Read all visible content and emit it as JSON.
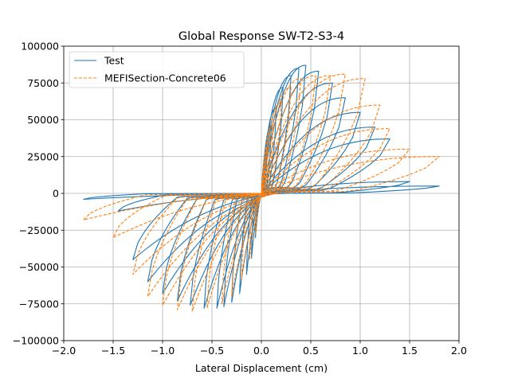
{
  "chart_data": {
    "type": "line",
    "title": "Global Response SW-T2-S3-4",
    "xlabel": "Lateral Displacement (cm)",
    "ylabel": "",
    "xlim": [
      -2.0,
      2.0
    ],
    "ylim": [
      -100000,
      100000
    ],
    "x_ticks": [
      -2.0,
      -1.5,
      -1.0,
      -0.5,
      0.0,
      0.5,
      1.0,
      1.5,
      2.0
    ],
    "x_tick_labels": [
      "−2.0",
      "−1.5",
      "−1.0",
      "−0.5",
      "0.0",
      "0.5",
      "1.0",
      "1.5",
      "2.0"
    ],
    "y_ticks": [
      -100000,
      -75000,
      -50000,
      -25000,
      0,
      25000,
      50000,
      75000,
      100000
    ],
    "y_tick_labels": [
      "−100000",
      "−75000",
      "−50000",
      "−25000",
      "0",
      "25000",
      "50000",
      "75000",
      "100000"
    ],
    "grid": true,
    "legend_position": "top-left",
    "legend": [
      "Test",
      "MEFISection-Concrete06"
    ],
    "series": [
      {
        "name": "Test",
        "color": "#1f77b4",
        "dash": "solid",
        "cycles": [
          {
            "dp": 0.06,
            "fp": 32000,
            "dn": -0.06,
            "fn": -30000
          },
          {
            "dp": 0.1,
            "fp": 46000,
            "dn": -0.1,
            "fn": -44000
          },
          {
            "dp": 0.15,
            "fp": 58000,
            "dn": -0.15,
            "fn": -55000
          },
          {
            "dp": 0.22,
            "fp": 72000,
            "dn": -0.22,
            "fn": -68000
          },
          {
            "dp": 0.3,
            "fp": 80000,
            "dn": -0.3,
            "fn": -74000
          },
          {
            "dp": 0.38,
            "fp": 85000,
            "dn": -0.38,
            "fn": -77000
          },
          {
            "dp": 0.45,
            "fp": 87000,
            "dn": -0.45,
            "fn": -78000
          },
          {
            "dp": 0.58,
            "fp": 83000,
            "dn": -0.58,
            "fn": -78000
          },
          {
            "dp": 0.72,
            "fp": 75000,
            "dn": -0.72,
            "fn": -76000
          },
          {
            "dp": 0.85,
            "fp": 65000,
            "dn": -0.85,
            "fn": -73000
          },
          {
            "dp": 1.0,
            "fp": 55000,
            "dn": -1.0,
            "fn": -68000
          },
          {
            "dp": 1.15,
            "fp": 45000,
            "dn": -1.15,
            "fn": -60000
          },
          {
            "dp": 1.3,
            "fp": 37000,
            "dn": -1.3,
            "fn": -45000
          },
          {
            "dp": 1.5,
            "fp": 8000,
            "dn": -1.45,
            "fn": -12000
          },
          {
            "dp": 1.8,
            "fp": 5000,
            "dn": -1.8,
            "fn": -4000
          }
        ]
      },
      {
        "name": "MEFISection-Concrete06",
        "color": "#ff7f0e",
        "dash": "dashed",
        "cycles": [
          {
            "dp": 0.06,
            "fp": 30000,
            "dn": -0.06,
            "fn": -28000
          },
          {
            "dp": 0.12,
            "fp": 48000,
            "dn": -0.12,
            "fn": -45000
          },
          {
            "dp": 0.2,
            "fp": 62000,
            "dn": -0.2,
            "fn": -58000
          },
          {
            "dp": 0.3,
            "fp": 72000,
            "dn": -0.3,
            "fn": -70000
          },
          {
            "dp": 0.4,
            "fp": 78000,
            "dn": -0.4,
            "fn": -75000
          },
          {
            "dp": 0.55,
            "fp": 80000,
            "dn": -0.55,
            "fn": -78000
          },
          {
            "dp": 0.7,
            "fp": 80000,
            "dn": -0.7,
            "fn": -80000
          },
          {
            "dp": 0.85,
            "fp": 81000,
            "dn": -0.85,
            "fn": -79000
          },
          {
            "dp": 1.05,
            "fp": 78000,
            "dn": -1.0,
            "fn": -76000
          },
          {
            "dp": 1.2,
            "fp": 60000,
            "dn": -1.15,
            "fn": -70000
          },
          {
            "dp": 1.3,
            "fp": 44000,
            "dn": -1.3,
            "fn": -55000
          },
          {
            "dp": 1.5,
            "fp": 30000,
            "dn": -1.5,
            "fn": -30000
          },
          {
            "dp": 1.8,
            "fp": 25000,
            "dn": -1.8,
            "fn": -18000
          }
        ]
      }
    ]
  }
}
